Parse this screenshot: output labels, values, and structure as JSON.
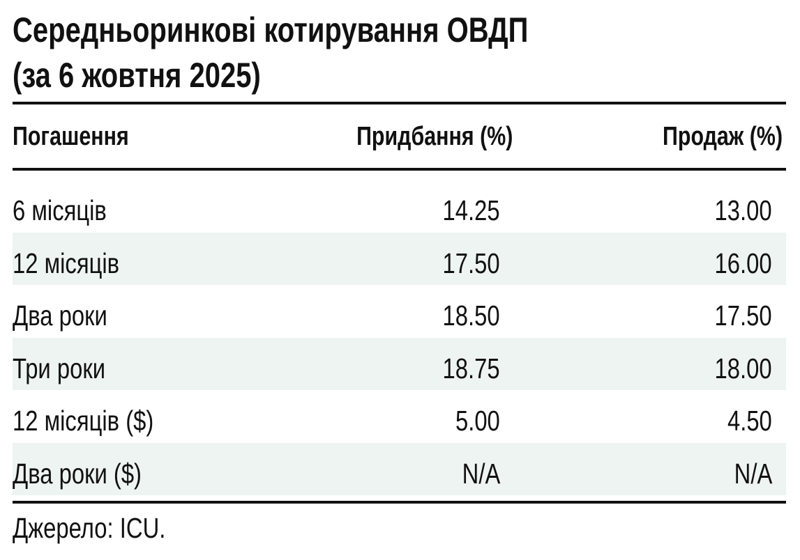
{
  "title": [
    "Середньоринкові котирування ОВДП",
    "(за 6 жовтня 2025)"
  ],
  "table": {
    "header": [
      "Погашення",
      "Придбання (%)",
      "Продаж (%)"
    ],
    "rows": [
      [
        "6 місяців",
        "14.25",
        "13.00"
      ],
      [
        "12 місяців",
        "17.50",
        "16.00"
      ],
      [
        "Два роки",
        "18.50",
        "17.50"
      ],
      [
        "Три роки",
        "18.75",
        "18.00"
      ],
      [
        "12 місяців ($)",
        "5.00",
        "4.50"
      ],
      [
        "Два роки ($)",
        "N/A",
        "N/A"
      ]
    ]
  },
  "source": "Джерело: ICU."
}
